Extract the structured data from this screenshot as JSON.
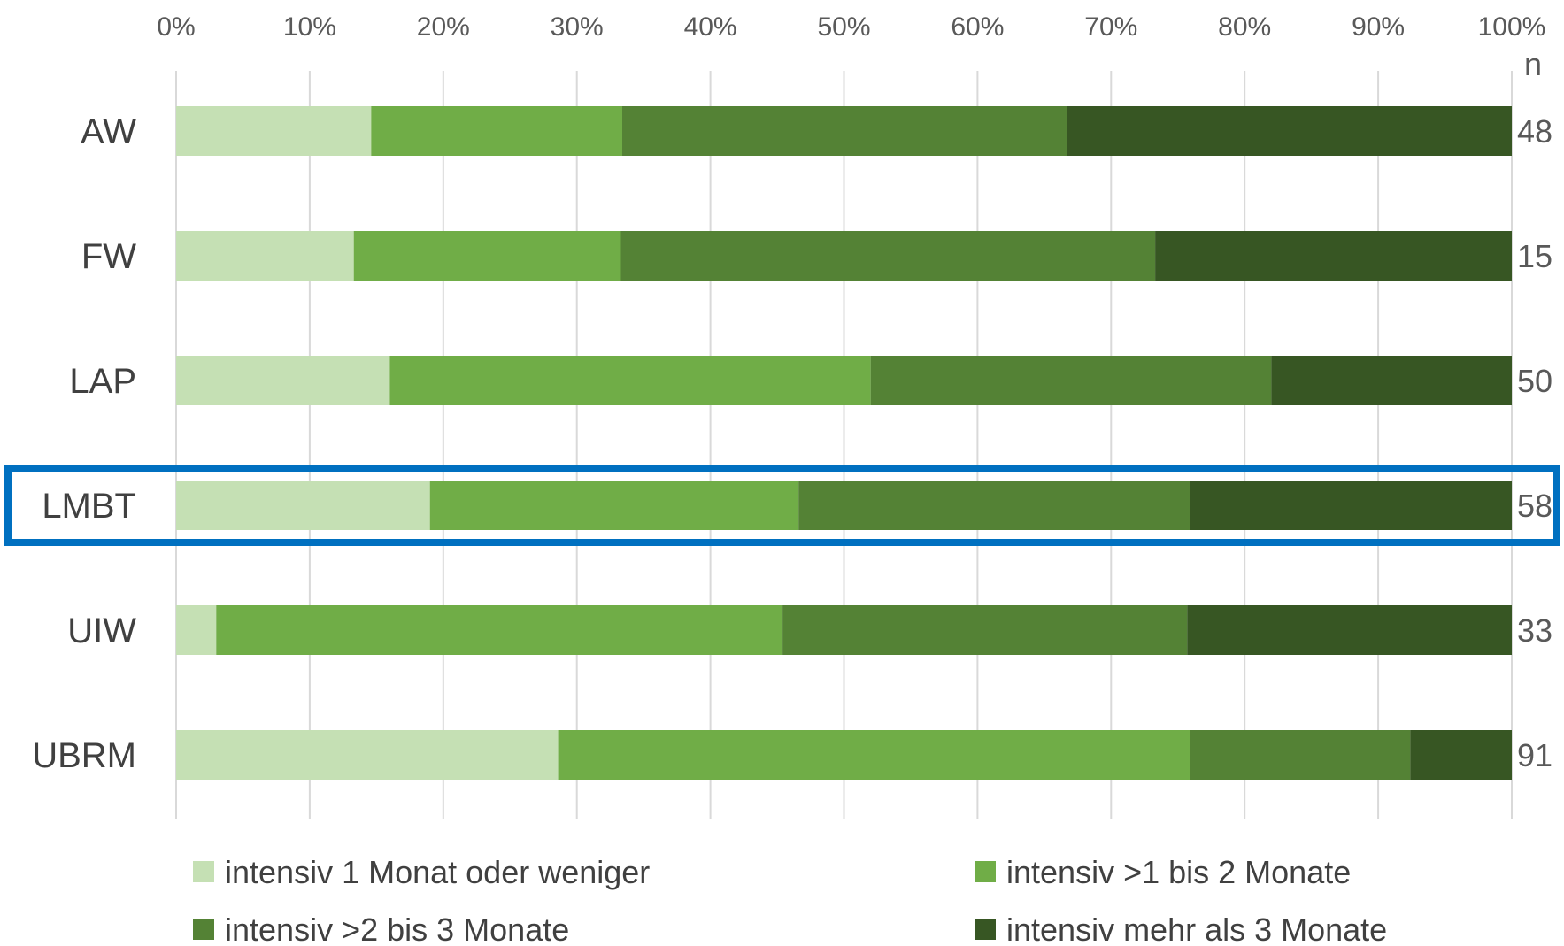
{
  "chart_data": {
    "type": "bar",
    "orientation": "horizontal",
    "stacked": "100%",
    "categories": [
      "AW",
      "FW",
      "LAP",
      "LMBT",
      "UIW",
      "UBRM"
    ],
    "highlighted_category": "LMBT",
    "highlight_color": "#0070C0",
    "xlim": [
      0,
      100
    ],
    "x_ticks": [
      "0%",
      "10%",
      "20%",
      "30%",
      "40%",
      "50%",
      "60%",
      "70%",
      "80%",
      "90%",
      "100%"
    ],
    "x_tick_values": [
      0,
      10,
      20,
      30,
      40,
      50,
      60,
      70,
      80,
      90,
      100
    ],
    "x_axis_position": "top",
    "grid": true,
    "n_header": "n",
    "n_values": [
      "48",
      "15",
      "50",
      "58",
      "33",
      "91"
    ],
    "series": [
      {
        "name": "intensiv 1 Monat oder weniger",
        "color": "#C5E0B4",
        "values": [
          14.6,
          13.3,
          16.0,
          19.0,
          3.0,
          28.6
        ]
      },
      {
        "name": "intensiv >1 bis 2 Monate",
        "color": "#70AD47",
        "values": [
          18.8,
          20.0,
          36.0,
          27.6,
          42.4,
          47.3
        ]
      },
      {
        "name": "intensiv >2 bis 3 Monate",
        "color": "#548235",
        "values": [
          33.3,
          40.0,
          30.0,
          29.3,
          30.3,
          16.5
        ]
      },
      {
        "name": "intensiv mehr als 3 Monate",
        "color": "#375623",
        "values": [
          33.3,
          26.7,
          18.0,
          24.1,
          24.3,
          7.6
        ]
      }
    ],
    "legend_position": "bottom"
  }
}
